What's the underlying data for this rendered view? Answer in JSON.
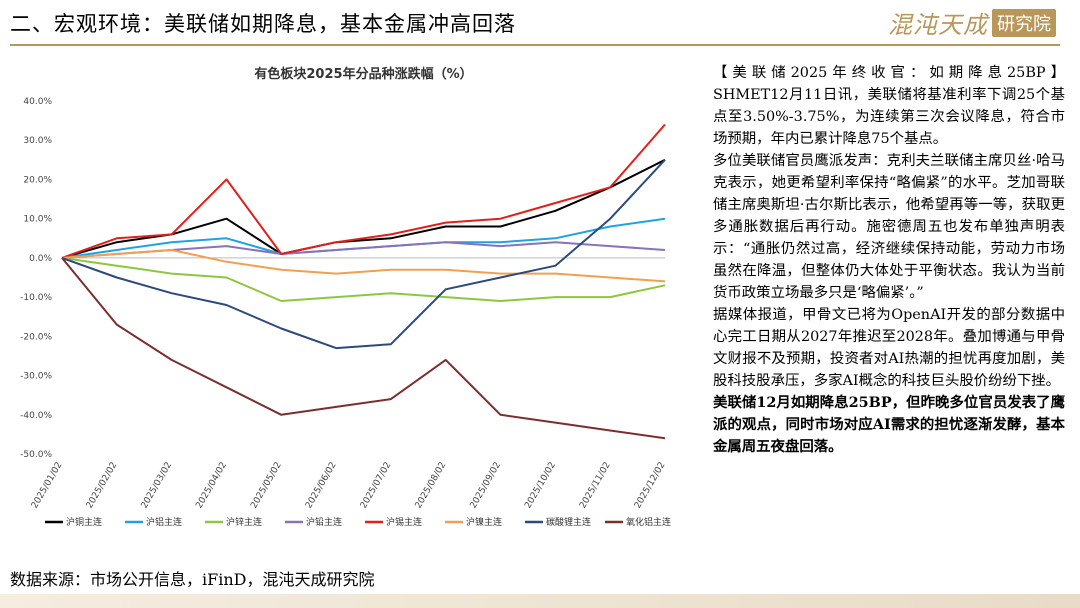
{
  "header": {
    "title": "二、宏观环境：美联储如期降息，基本金属冲高回落",
    "logo_main": "混沌天成",
    "logo_sub": "研究院"
  },
  "chart_data": {
    "type": "line",
    "title": "有色板块2025年分品种涨跌幅（%）",
    "xlabel": "",
    "ylabel": "",
    "x": [
      "2025/01/02",
      "2025/02/02",
      "2025/03/02",
      "2025/04/02",
      "2025/05/02",
      "2025/06/02",
      "2025/07/02",
      "2025/08/02",
      "2025/09/02",
      "2025/10/02",
      "2025/11/02",
      "2025/12/02"
    ],
    "y_ticks": [
      "40.0%",
      "30.0%",
      "20.0%",
      "10.0%",
      "0.0%",
      "-10.0%",
      "-20.0%",
      "-30.0%",
      "-40.0%",
      "-50.0%"
    ],
    "ylim": [
      -50,
      40
    ],
    "legend_position": "bottom",
    "grid": false,
    "series": [
      {
        "name": "沪铜主连",
        "color": "#000000",
        "values": [
          0,
          4,
          6,
          10,
          1,
          4,
          5,
          8,
          8,
          12,
          18,
          25
        ]
      },
      {
        "name": "沪铝主连",
        "color": "#1fa2e0",
        "values": [
          0,
          2,
          4,
          5,
          1,
          2,
          3,
          4,
          4,
          5,
          8,
          10
        ]
      },
      {
        "name": "沪锌主连",
        "color": "#8dc63f",
        "values": [
          0,
          -2,
          -4,
          -5,
          -11,
          -10,
          -9,
          -10,
          -11,
          -10,
          -10,
          -7
        ]
      },
      {
        "name": "沪铅主连",
        "color": "#8a72b8",
        "values": [
          0,
          1,
          2,
          3,
          1,
          2,
          3,
          4,
          3,
          4,
          3,
          2
        ]
      },
      {
        "name": "沪锡主连",
        "color": "#e0201b",
        "values": [
          0,
          5,
          6,
          20,
          1,
          4,
          6,
          9,
          10,
          14,
          18,
          34
        ]
      },
      {
        "name": "沪镍主连",
        "color": "#f0a050",
        "values": [
          0,
          1,
          2,
          -1,
          -3,
          -4,
          -3,
          -3,
          -4,
          -4,
          -5,
          -6
        ]
      },
      {
        "name": "碳酸锂主连",
        "color": "#2c4a7a",
        "values": [
          0,
          -5,
          -9,
          -12,
          -18,
          -23,
          -22,
          -8,
          -5,
          -2,
          10,
          25
        ]
      },
      {
        "name": "氧化铝主连",
        "color": "#7a2e2e",
        "values": [
          0,
          -17,
          -26,
          -33,
          -40,
          -38,
          -36,
          -26,
          -40,
          -42,
          -44,
          -46
        ]
      }
    ]
  },
  "commentary": {
    "p1": "【美联储2025年终收官：如期降息25BP】SHMET12月11日讯，美联储将基准利率下调25个基点至3.50%-3.75%，为连续第三次会议降息，符合市场预期，年内已累计降息75个基点。",
    "p2": "多位美联储官员鹰派发声：克利夫兰联储主席贝丝·哈马克表示，她更希望利率保持“略偏紧”的水平。芝加哥联储主席奥斯坦·古尔斯比表示，他希望再等一等，获取更多通胀数据后再行动。施密德周五也发布单独声明表示：“通胀仍然过高，经济继续保持动能，劳动力市场虽然在降温，但整体仍大体处于平衡状态。我认为当前货币政策立场最多只是‘略偏紧’。”",
    "p3": "据媒体报道，甲骨文已将为OpenAI开发的部分数据中心完工日期从2027年推迟至2028年。叠加博通与甲骨文财报不及预期，投资者对AI热潮的担忧再度加剧，美股科技股承压，多家AI概念的科技巨头股价纷纷下挫。",
    "p4": "美联储12月如期降息25BP，但昨晚多位官员发表了鹰派的观点，同时市场对应AI需求的担忧逐渐发酵，基本金属周五夜盘回落。"
  },
  "footer": {
    "source": "数据来源：市场公开信息，iFinD，混沌天成研究院"
  }
}
